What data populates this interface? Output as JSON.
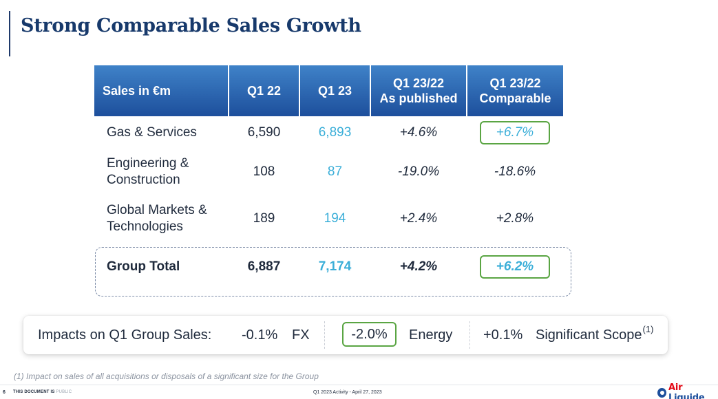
{
  "title": "Strong Comparable Sales Growth",
  "table": {
    "headers": {
      "col0": "Sales in €m",
      "col1": "Q1 22",
      "col2": "Q1 23",
      "col3_line1": "Q1 23/22",
      "col3_line2": "As published",
      "col4_line1": "Q1 23/22",
      "col4_line2": "Comparable"
    },
    "rows": [
      {
        "label_line1": "Gas & Services",
        "label_line2": "",
        "q1_22": "6,590",
        "q1_23": "6,893",
        "published": "+4.6%",
        "comparable": "+6.7%",
        "comparable_highlighted": true
      },
      {
        "label_line1": "Engineering &",
        "label_line2": "Construction",
        "q1_22": "108",
        "q1_23": "87",
        "published": "-19.0%",
        "comparable": "-18.6%",
        "comparable_highlighted": false
      },
      {
        "label_line1": "Global Markets &",
        "label_line2": "Technologies",
        "q1_22": "189",
        "q1_23": "194",
        "published": "+2.4%",
        "comparable": "+2.8%",
        "comparable_highlighted": false
      },
      {
        "label_line1": "Group Total",
        "label_line2": "",
        "q1_22": "6,887",
        "q1_23": "7,174",
        "published": "+4.2%",
        "comparable": "+6.2%",
        "comparable_highlighted": true
      }
    ]
  },
  "impacts": {
    "label": "Impacts on Q1 Group Sales:",
    "fx_value": "-0.1%",
    "fx_label": "FX",
    "energy_value": "-2.0%",
    "energy_label": "Energy",
    "scope_value": "+0.1%",
    "scope_label": "Significant Scope",
    "scope_note": "(1)"
  },
  "footnote": "(1) Impact on sales of all acquisitions or disposals of a significant size for the Group",
  "footer": {
    "page_number": "6",
    "doc_label": "THIS DOCUMENT IS",
    "doc_status": "PUBLIC",
    "center_text": "Q1 2023 Activity - April 27, 2023",
    "logo_text_a": "Air",
    "logo_text_b": " Liquide"
  },
  "colors": {
    "header_blue": "#1d4f9c",
    "q1_23_cyan": "#3aaed8",
    "highlight_green": "#5aa543",
    "title_navy": "#17396b"
  }
}
